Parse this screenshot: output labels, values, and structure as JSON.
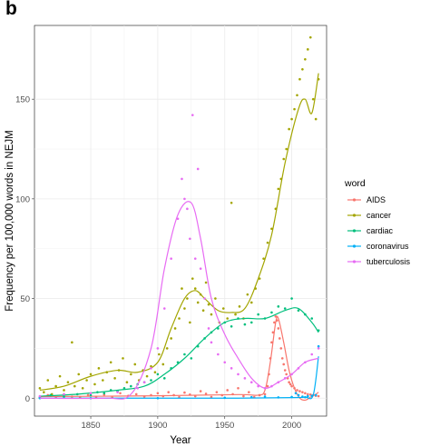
{
  "panel_label": "b",
  "chart_data": {
    "type": "scatter",
    "title": "",
    "xlabel": "Year",
    "ylabel": "Frequency per 100,000 words in NEJM",
    "xlim": [
      1808,
      2026
    ],
    "ylim": [
      -9,
      187
    ],
    "x_ticks": [
      1850,
      1900,
      1950,
      2000
    ],
    "y_ticks": [
      0,
      50,
      100,
      150
    ],
    "grid": true,
    "legend_position": "right",
    "legend_title": "word",
    "smoothing": "loess fit line per series over the yearly points",
    "series": [
      {
        "name": "AIDS",
        "color": "#F8766D",
        "points": [
          [
            1812,
            0.5
          ],
          [
            1818,
            1.5
          ],
          [
            1824,
            0.3
          ],
          [
            1830,
            2
          ],
          [
            1836,
            0.8
          ],
          [
            1842,
            0.5
          ],
          [
            1848,
            1.5
          ],
          [
            1854,
            0.6
          ],
          [
            1860,
            1.8
          ],
          [
            1866,
            0.4
          ],
          [
            1872,
            2.5
          ],
          [
            1878,
            1.2
          ],
          [
            1884,
            2
          ],
          [
            1890,
            0.8
          ],
          [
            1895,
            1.5
          ],
          [
            1900,
            2.5
          ],
          [
            1904,
            1
          ],
          [
            1908,
            3
          ],
          [
            1912,
            1.5
          ],
          [
            1916,
            0.5
          ],
          [
            1920,
            2.8
          ],
          [
            1924,
            1.8
          ],
          [
            1928,
            1
          ],
          [
            1932,
            3.5
          ],
          [
            1936,
            2.2
          ],
          [
            1940,
            0.6
          ],
          [
            1944,
            3
          ],
          [
            1948,
            1.5
          ],
          [
            1952,
            4
          ],
          [
            1956,
            2
          ],
          [
            1960,
            5
          ],
          [
            1964,
            1
          ],
          [
            1968,
            3
          ],
          [
            1972,
            0.5
          ],
          [
            1976,
            1.5
          ],
          [
            1980,
            2
          ],
          [
            1982,
            6
          ],
          [
            1983,
            12
          ],
          [
            1984,
            20
          ],
          [
            1985,
            28
          ],
          [
            1986,
            33
          ],
          [
            1987,
            38
          ],
          [
            1988,
            41
          ],
          [
            1989,
            39
          ],
          [
            1990,
            35
          ],
          [
            1991,
            30
          ],
          [
            1992,
            25
          ],
          [
            1993,
            20
          ],
          [
            1994,
            17
          ],
          [
            1995,
            14
          ],
          [
            1996,
            12
          ],
          [
            1997,
            10
          ],
          [
            1998,
            8
          ],
          [
            1999,
            7
          ],
          [
            2000,
            6
          ],
          [
            2002,
            5
          ],
          [
            2004,
            4
          ],
          [
            2006,
            3.5
          ],
          [
            2008,
            3
          ],
          [
            2010,
            2.5
          ],
          [
            2012,
            2
          ],
          [
            2014,
            1.8
          ],
          [
            2016,
            1.5
          ],
          [
            2018,
            1.2
          ],
          [
            2020,
            1
          ]
        ],
        "trend": [
          [
            1812,
            0.8
          ],
          [
            1900,
            1.2
          ],
          [
            1960,
            1.8
          ],
          [
            1975,
            1.5
          ],
          [
            1980,
            4
          ],
          [
            1984,
            18
          ],
          [
            1988,
            38
          ],
          [
            1990,
            40
          ],
          [
            1994,
            28
          ],
          [
            1998,
            14
          ],
          [
            2002,
            5
          ],
          [
            2006,
            0
          ],
          [
            2010,
            -1
          ],
          [
            2014,
            0.5
          ],
          [
            2018,
            2
          ],
          [
            2020,
            3
          ]
        ]
      },
      {
        "name": "cancer",
        "color": "#A3A500",
        "points": [
          [
            1812,
            5
          ],
          [
            1815,
            3
          ],
          [
            1818,
            9
          ],
          [
            1821,
            2
          ],
          [
            1824,
            6
          ],
          [
            1827,
            11
          ],
          [
            1830,
            4
          ],
          [
            1833,
            8
          ],
          [
            1836,
            28
          ],
          [
            1838,
            6
          ],
          [
            1841,
            12
          ],
          [
            1844,
            5
          ],
          [
            1847,
            9
          ],
          [
            1850,
            12
          ],
          [
            1853,
            7
          ],
          [
            1856,
            15
          ],
          [
            1859,
            9
          ],
          [
            1862,
            13
          ],
          [
            1865,
            18
          ],
          [
            1868,
            10
          ],
          [
            1871,
            14
          ],
          [
            1874,
            20
          ],
          [
            1877,
            8
          ],
          [
            1880,
            12
          ],
          [
            1883,
            17
          ],
          [
            1886,
            9
          ],
          [
            1889,
            14
          ],
          [
            1892,
            11
          ],
          [
            1895,
            16
          ],
          [
            1898,
            13
          ],
          [
            1901,
            22
          ],
          [
            1904,
            17
          ],
          [
            1907,
            25
          ],
          [
            1910,
            30
          ],
          [
            1913,
            35
          ],
          [
            1916,
            40
          ],
          [
            1918,
            55
          ],
          [
            1920,
            45
          ],
          [
            1922,
            50
          ],
          [
            1924,
            38
          ],
          [
            1926,
            60
          ],
          [
            1928,
            55
          ],
          [
            1930,
            48
          ],
          [
            1932,
            52
          ],
          [
            1934,
            44
          ],
          [
            1936,
            58
          ],
          [
            1938,
            47
          ],
          [
            1940,
            42
          ],
          [
            1943,
            50
          ],
          [
            1946,
            38
          ],
          [
            1949,
            45
          ],
          [
            1952,
            40
          ],
          [
            1955,
            98
          ],
          [
            1958,
            42
          ],
          [
            1961,
            46
          ],
          [
            1964,
            40
          ],
          [
            1967,
            52
          ],
          [
            1970,
            48
          ],
          [
            1973,
            55
          ],
          [
            1976,
            60
          ],
          [
            1979,
            70
          ],
          [
            1982,
            78
          ],
          [
            1985,
            85
          ],
          [
            1988,
            95
          ],
          [
            1990,
            105
          ],
          [
            1992,
            110
          ],
          [
            1994,
            120
          ],
          [
            1996,
            125
          ],
          [
            1998,
            135
          ],
          [
            2000,
            140
          ],
          [
            2002,
            145
          ],
          [
            2004,
            152
          ],
          [
            2006,
            160
          ],
          [
            2008,
            165
          ],
          [
            2010,
            170
          ],
          [
            2012,
            175
          ],
          [
            2014,
            181
          ],
          [
            2016,
            150
          ],
          [
            2018,
            140
          ],
          [
            2020,
            160
          ]
        ],
        "trend": [
          [
            1812,
            4
          ],
          [
            1830,
            6
          ],
          [
            1850,
            11
          ],
          [
            1870,
            14
          ],
          [
            1885,
            13
          ],
          [
            1900,
            18
          ],
          [
            1910,
            35
          ],
          [
            1920,
            50
          ],
          [
            1928,
            54
          ],
          [
            1935,
            50
          ],
          [
            1945,
            44
          ],
          [
            1955,
            43
          ],
          [
            1965,
            45
          ],
          [
            1975,
            60
          ],
          [
            1985,
            82
          ],
          [
            1995,
            118
          ],
          [
            2005,
            145
          ],
          [
            2010,
            150
          ],
          [
            2015,
            143
          ],
          [
            2020,
            163
          ]
        ]
      },
      {
        "name": "cardiac",
        "color": "#00BF7D",
        "points": [
          [
            1812,
            0.2
          ],
          [
            1820,
            1.5
          ],
          [
            1830,
            0.8
          ],
          [
            1840,
            2
          ],
          [
            1850,
            1.5
          ],
          [
            1855,
            3
          ],
          [
            1860,
            2.5
          ],
          [
            1865,
            4
          ],
          [
            1870,
            3.5
          ],
          [
            1875,
            5
          ],
          [
            1880,
            6
          ],
          [
            1885,
            7
          ],
          [
            1890,
            8
          ],
          [
            1895,
            9
          ],
          [
            1900,
            12
          ],
          [
            1905,
            10
          ],
          [
            1910,
            15
          ],
          [
            1915,
            18
          ],
          [
            1920,
            22
          ],
          [
            1925,
            20
          ],
          [
            1930,
            26
          ],
          [
            1935,
            30
          ],
          [
            1940,
            33
          ],
          [
            1945,
            35
          ],
          [
            1950,
            38
          ],
          [
            1955,
            36
          ],
          [
            1960,
            40
          ],
          [
            1965,
            37
          ],
          [
            1970,
            38
          ],
          [
            1975,
            42
          ],
          [
            1980,
            40
          ],
          [
            1985,
            43
          ],
          [
            1990,
            46
          ],
          [
            1995,
            45
          ],
          [
            2000,
            50
          ],
          [
            2005,
            44
          ],
          [
            2010,
            42
          ],
          [
            2015,
            40
          ],
          [
            2020,
            34
          ]
        ],
        "trend": [
          [
            1812,
            1
          ],
          [
            1840,
            2
          ],
          [
            1870,
            4
          ],
          [
            1890,
            6
          ],
          [
            1905,
            12
          ],
          [
            1920,
            20
          ],
          [
            1935,
            30
          ],
          [
            1950,
            38
          ],
          [
            1965,
            40
          ],
          [
            1980,
            40
          ],
          [
            1995,
            44
          ],
          [
            2005,
            45
          ],
          [
            2015,
            38
          ],
          [
            2020,
            33
          ]
        ]
      },
      {
        "name": "coronavirus",
        "color": "#00B0F6",
        "points": [
          [
            1812,
            0
          ],
          [
            1850,
            0
          ],
          [
            1900,
            0
          ],
          [
            1950,
            0.2
          ],
          [
            1970,
            0.5
          ],
          [
            1980,
            0.8
          ],
          [
            1990,
            0.4
          ],
          [
            2000,
            0.6
          ],
          [
            2003,
            2.5
          ],
          [
            2005,
            1.5
          ],
          [
            2008,
            0.8
          ],
          [
            2010,
            0.5
          ],
          [
            2012,
            1
          ],
          [
            2015,
            1.2
          ],
          [
            2018,
            1.5
          ],
          [
            2020,
            26
          ]
        ],
        "trend": [
          [
            1812,
            0
          ],
          [
            1900,
            0
          ],
          [
            1960,
            0
          ],
          [
            2000,
            0.3
          ],
          [
            2010,
            0.5
          ],
          [
            2016,
            1.5
          ],
          [
            2020,
            21
          ]
        ]
      },
      {
        "name": "tuberculosis",
        "color": "#E76BF3",
        "points": [
          [
            1812,
            1
          ],
          [
            1830,
            2
          ],
          [
            1850,
            2.5
          ],
          [
            1870,
            3
          ],
          [
            1885,
            5
          ],
          [
            1890,
            8
          ],
          [
            1895,
            15
          ],
          [
            1900,
            25
          ],
          [
            1905,
            45
          ],
          [
            1910,
            70
          ],
          [
            1915,
            90
          ],
          [
            1918,
            110
          ],
          [
            1920,
            100
          ],
          [
            1922,
            95
          ],
          [
            1924,
            80
          ],
          [
            1926,
            142
          ],
          [
            1928,
            70
          ],
          [
            1930,
            115
          ],
          [
            1932,
            65
          ],
          [
            1935,
            50
          ],
          [
            1938,
            35
          ],
          [
            1940,
            28
          ],
          [
            1945,
            22
          ],
          [
            1950,
            18
          ],
          [
            1955,
            15
          ],
          [
            1960,
            12
          ],
          [
            1965,
            10
          ],
          [
            1970,
            8
          ],
          [
            1975,
            6
          ],
          [
            1980,
            5
          ],
          [
            1985,
            6
          ],
          [
            1990,
            8
          ],
          [
            1995,
            10
          ],
          [
            2000,
            12
          ],
          [
            2005,
            15
          ],
          [
            2010,
            18
          ],
          [
            2015,
            22
          ],
          [
            2020,
            25
          ]
        ],
        "trend": [
          [
            1812,
            0
          ],
          [
            1860,
            0
          ],
          [
            1880,
            2
          ],
          [
            1895,
            25
          ],
          [
            1905,
            65
          ],
          [
            1915,
            92
          ],
          [
            1925,
            98
          ],
          [
            1932,
            80
          ],
          [
            1940,
            50
          ],
          [
            1950,
            32
          ],
          [
            1960,
            20
          ],
          [
            1970,
            10
          ],
          [
            1980,
            5
          ],
          [
            1990,
            8
          ],
          [
            2000,
            12
          ],
          [
            2010,
            18
          ],
          [
            2020,
            20
          ]
        ]
      }
    ]
  }
}
